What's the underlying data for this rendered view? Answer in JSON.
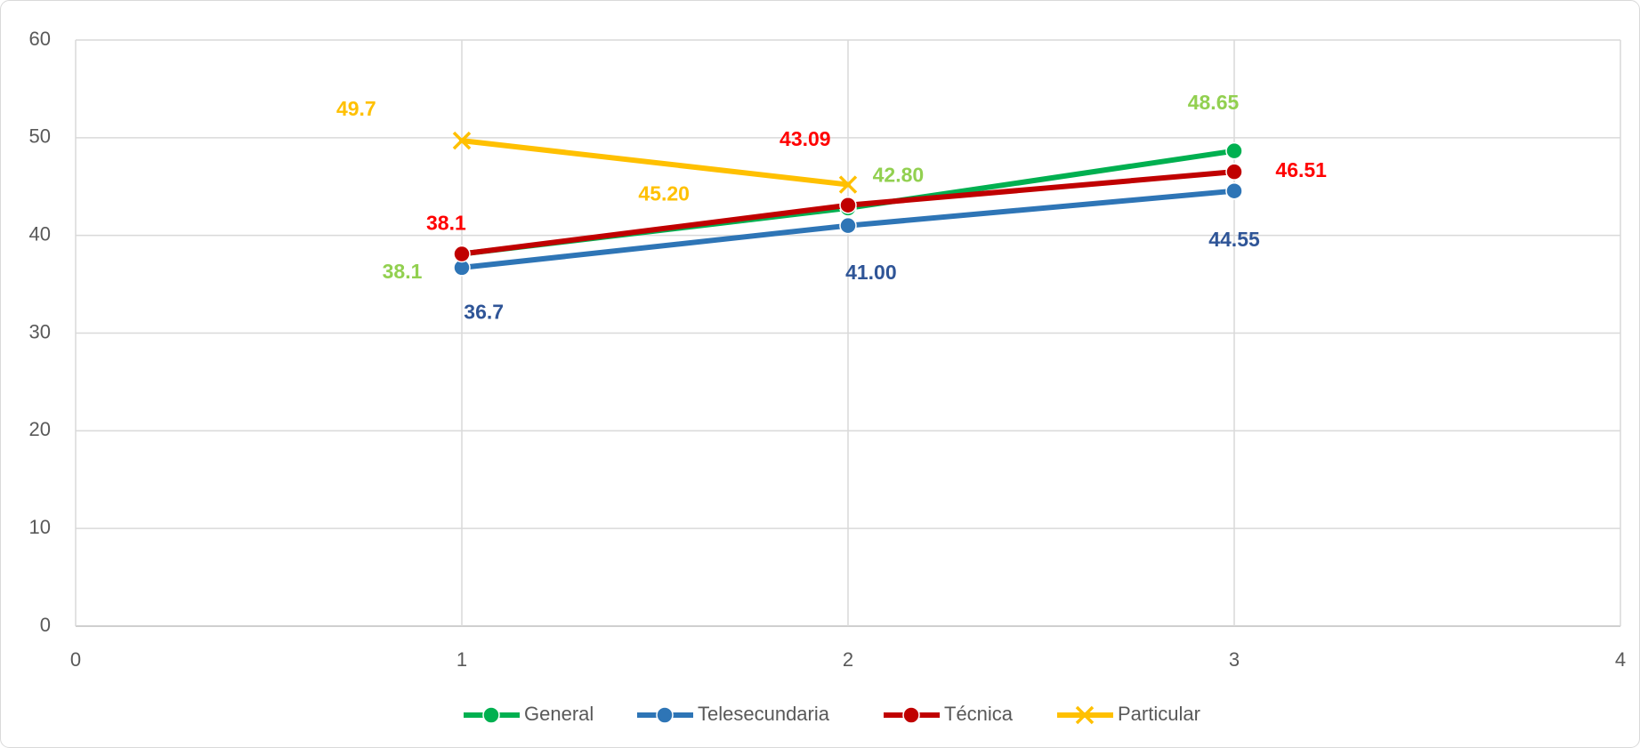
{
  "chart_data": {
    "type": "line",
    "xlim": [
      0,
      4
    ],
    "xticks": [
      0,
      1,
      2,
      3,
      4
    ],
    "ylim": [
      0,
      60
    ],
    "yticks": [
      0,
      10,
      20,
      30,
      40,
      50,
      60
    ],
    "grid": true,
    "legend": "bottom",
    "series": [
      {
        "name": "General",
        "color": "#00b050",
        "label_color": "#92d050",
        "marker": "circle",
        "x": [
          1,
          2,
          3
        ],
        "values": [
          38.1,
          42.8,
          48.65
        ],
        "value_labels": [
          "38.1",
          "42.80",
          "48.65"
        ]
      },
      {
        "name": "Telesecundaria",
        "color": "#2e75b6",
        "label_color": "#2f5597",
        "marker": "circle",
        "x": [
          1,
          2,
          3
        ],
        "values": [
          36.7,
          41.0,
          44.55
        ],
        "value_labels": [
          "36.7",
          "41.00",
          "44.55"
        ]
      },
      {
        "name": "Técnica",
        "color": "#c00000",
        "label_color": "#ff0000",
        "marker": "circle",
        "x": [
          1,
          2,
          3
        ],
        "values": [
          38.1,
          43.09,
          46.51
        ],
        "value_labels": [
          "38.1",
          "43.09",
          "46.51"
        ]
      },
      {
        "name": "Particular",
        "color": "#ffc000",
        "label_color": "#ffc000",
        "marker": "x",
        "x": [
          1,
          2
        ],
        "values": [
          49.7,
          45.2
        ],
        "value_labels": [
          "49.7",
          "45.20"
        ]
      }
    ]
  }
}
